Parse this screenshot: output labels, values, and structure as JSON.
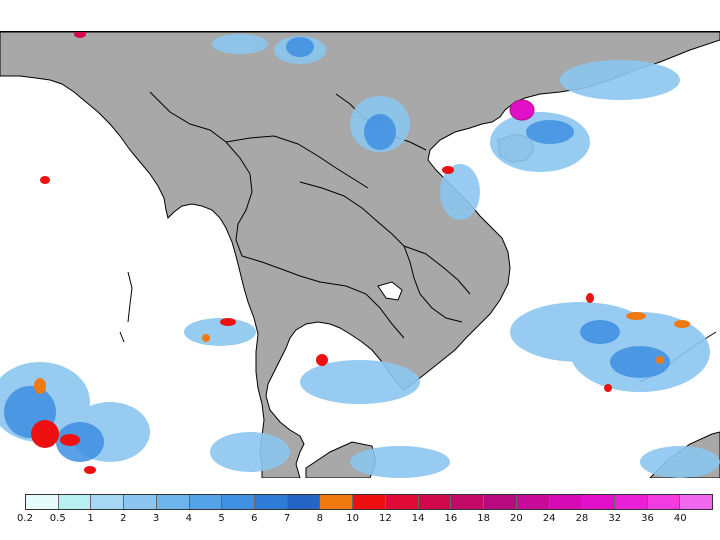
{
  "map": {
    "region": "Mainland Southeast Asia and South China Sea",
    "land_color": "#a8a8a8",
    "water_color": "#ffffff",
    "border_color": "#000000"
  },
  "legend": {
    "classes": [
      {
        "label": "0.2",
        "color": "#e6fbfb"
      },
      {
        "label": "0.5",
        "color": "#b8f0f2"
      },
      {
        "label": "1",
        "color": "#a6d8f3"
      },
      {
        "label": "2",
        "color": "#8cc6f0"
      },
      {
        "label": "3",
        "color": "#6eb4ec"
      },
      {
        "label": "4",
        "color": "#54a2e8"
      },
      {
        "label": "5",
        "color": "#3f8fe2"
      },
      {
        "label": "6",
        "color": "#2f7bd8"
      },
      {
        "label": "7",
        "color": "#2464c4"
      },
      {
        "label": "8",
        "color": "#f07a10"
      },
      {
        "label": "10",
        "color": "#ee1010"
      },
      {
        "label": "12",
        "color": "#e00a36"
      },
      {
        "label": "14",
        "color": "#d0084c"
      },
      {
        "label": "16",
        "color": "#c20a66"
      },
      {
        "label": "18",
        "color": "#b80a80"
      },
      {
        "label": "20",
        "color": "#c80a9a"
      },
      {
        "label": "24",
        "color": "#d60ab4"
      },
      {
        "label": "28",
        "color": "#e010c8"
      },
      {
        "label": "32",
        "color": "#ea20d6"
      },
      {
        "label": "36",
        "color": "#f23ce2"
      },
      {
        "label": "40",
        "color": "#f068ec"
      }
    ]
  }
}
